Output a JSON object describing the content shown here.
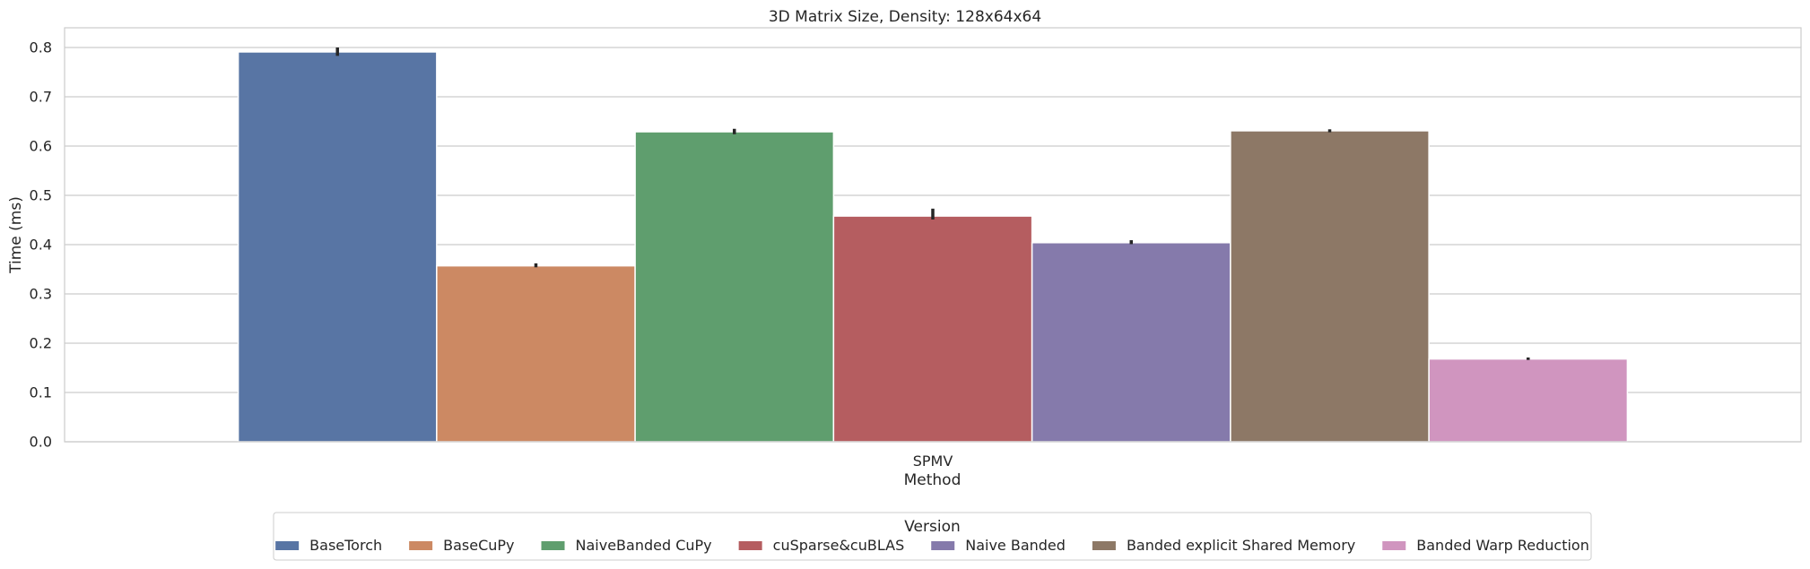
{
  "chart_data": {
    "type": "bar",
    "title": "3D Matrix Size, Density: 128x64x64",
    "xlabel": "Method",
    "ylabel": "Time (ms)",
    "categories": [
      "SPMV"
    ],
    "ylim": [
      0,
      0.84
    ],
    "yticks": [
      "0.0",
      "0.1",
      "0.2",
      "0.3",
      "0.4",
      "0.5",
      "0.6",
      "0.7",
      "0.8"
    ],
    "grid": "horizontal",
    "legend": {
      "title": "Version",
      "placement": "bottom-center"
    },
    "series": [
      {
        "name": "BaseTorch",
        "color": "#5875a4",
        "values": [
          0.791
        ],
        "err_low": [
          0.783
        ],
        "err_high": [
          0.8
        ]
      },
      {
        "name": "BaseCuPy",
        "color": "#cc8963",
        "values": [
          0.357
        ],
        "err_low": [
          0.354
        ],
        "err_high": [
          0.362
        ]
      },
      {
        "name": "NaiveBanded CuPy",
        "color": "#5f9e6e",
        "values": [
          0.629
        ],
        "err_low": [
          0.624
        ],
        "err_high": [
          0.635
        ]
      },
      {
        "name": "cuSparse&cuBLAS",
        "color": "#b55d60",
        "values": [
          0.458
        ],
        "err_low": [
          0.451
        ],
        "err_high": [
          0.473
        ]
      },
      {
        "name": "Naive Banded",
        "color": "#857aab",
        "values": [
          0.404
        ],
        "err_low": [
          0.401
        ],
        "err_high": [
          0.409
        ]
      },
      {
        "name": "Banded explicit Shared Memory",
        "color": "#8d7866",
        "values": [
          0.631
        ],
        "err_low": [
          0.628
        ],
        "err_high": [
          0.634
        ]
      },
      {
        "name": "Banded Warp Reduction",
        "color": "#d095bf",
        "values": [
          0.168
        ],
        "err_low": [
          0.166
        ],
        "err_high": [
          0.171
        ]
      }
    ]
  }
}
